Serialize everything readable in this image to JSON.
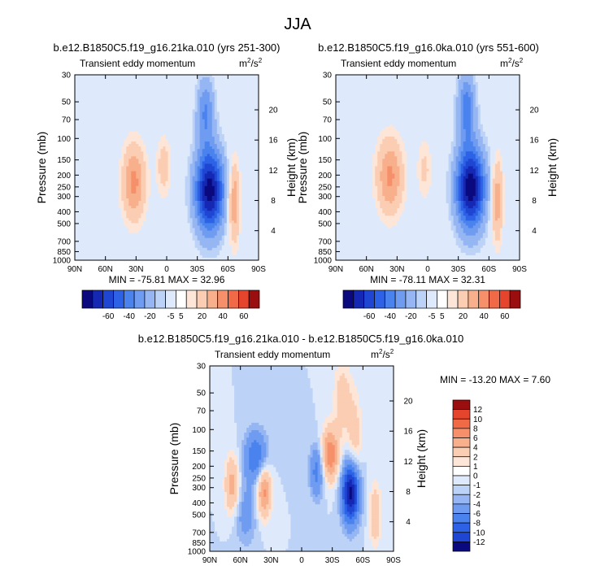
{
  "title": "JJA",
  "colors": {
    "ramp": [
      "#0a0a7e",
      "#1428b4",
      "#1e46d2",
      "#2d62e6",
      "#4a82ee",
      "#6f9cf0",
      "#95b6f2",
      "#bcd2f6",
      "#deeafb",
      "#ffffff",
      "#fde6d8",
      "#fbcdb2",
      "#f8b08c",
      "#f5906a",
      "#f06a48",
      "#e4452c",
      "#c9221a",
      "#9b0e10",
      "#720407"
    ],
    "bg_ring": "#fde6d8",
    "bg_blue": "#deeafb"
  },
  "chart_data": [
    {
      "type": "heatmap",
      "title": "b.e12.B1850C5.f19_g16.21ka.010 (yrs 251-300)",
      "left_label": "Transient eddy momentum",
      "units": "m²/s²",
      "units_base": "m",
      "units_sup1": "2",
      "units_mid": "/s",
      "units_sup2": "2",
      "xlabel": "",
      "ylabel": "Pressure (mb)",
      "ylabel_right": "Height (km)",
      "x_ticks": [
        "90N",
        "60N",
        "30N",
        "0",
        "30S",
        "60S",
        "90S"
      ],
      "x_values": [
        90,
        60,
        30,
        0,
        -30,
        -60,
        -90
      ],
      "y_ticks": [
        "30",
        "50",
        "70",
        "100",
        "150",
        "200",
        "250",
        "300",
        "400",
        "500",
        "700",
        "850",
        "1000"
      ],
      "y_values": [
        30,
        50,
        70,
        100,
        150,
        200,
        250,
        300,
        400,
        500,
        700,
        850,
        1000
      ],
      "right_ticks": [
        "4",
        "8",
        "12",
        "16",
        "20"
      ],
      "right_values": [
        4,
        8,
        12,
        16,
        20
      ],
      "ylim": [
        1000,
        30
      ],
      "xlim": [
        90,
        -90
      ],
      "y_scale": "log",
      "min_label": "MIN = -75.81  MAX = 32.96",
      "min": -75.81,
      "max": 32.96,
      "levels": [
        "-60",
        "-40",
        "-20",
        "-5",
        "5",
        "20",
        "40",
        "60"
      ],
      "features": [
        {
          "lat": -42,
          "p": 270,
          "value": -75.81,
          "sigma_lat": 10,
          "sigma_p": 0.55
        },
        {
          "lat": -38,
          "p": 60,
          "value": -30,
          "sigma_lat": 6,
          "sigma_p": 0.45
        },
        {
          "lat": 32,
          "p": 230,
          "value": 32.96,
          "sigma_lat": 8,
          "sigma_p": 0.5
        },
        {
          "lat": -66,
          "p": 330,
          "value": 30,
          "sigma_lat": 4,
          "sigma_p": 0.55
        },
        {
          "lat": 3,
          "p": 170,
          "value": 15,
          "sigma_lat": 5,
          "sigma_p": 0.4
        }
      ]
    },
    {
      "type": "heatmap",
      "title": "b.e12.B1850C5.f19_g16.0ka.010 (yrs 551-600)",
      "left_label": "Transient eddy momentum",
      "units": "m²/s²",
      "units_base": "m",
      "units_sup1": "2",
      "units_mid": "/s",
      "units_sup2": "2",
      "xlabel": "",
      "ylabel": "Pressure (mb)",
      "ylabel_right": "Height (km)",
      "x_ticks": [
        "90N",
        "60N",
        "30N",
        "0",
        "30S",
        "60S",
        "90S"
      ],
      "x_values": [
        90,
        60,
        30,
        0,
        -30,
        -60,
        -90
      ],
      "y_ticks": [
        "30",
        "50",
        "70",
        "100",
        "150",
        "200",
        "250",
        "300",
        "400",
        "500",
        "700",
        "850",
        "1000"
      ],
      "y_values": [
        30,
        50,
        70,
        100,
        150,
        200,
        250,
        300,
        400,
        500,
        700,
        850,
        1000
      ],
      "right_ticks": [
        "4",
        "8",
        "12",
        "16",
        "20"
      ],
      "right_values": [
        4,
        8,
        12,
        16,
        20
      ],
      "ylim": [
        1000,
        30
      ],
      "xlim": [
        90,
        -90
      ],
      "y_scale": "log",
      "min_label": "MIN = -78.11  MAX = 32.31",
      "min": -78.11,
      "max": 32.31,
      "levels": [
        "-60",
        "-40",
        "-20",
        "-5",
        "5",
        "20",
        "40",
        "60"
      ],
      "features": [
        {
          "lat": -42,
          "p": 255,
          "value": -78.11,
          "sigma_lat": 10,
          "sigma_p": 0.55
        },
        {
          "lat": -38,
          "p": 55,
          "value": -35,
          "sigma_lat": 6,
          "sigma_p": 0.45
        },
        {
          "lat": 37,
          "p": 205,
          "value": 32.31,
          "sigma_lat": 9,
          "sigma_p": 0.5
        },
        {
          "lat": -68,
          "p": 320,
          "value": 28,
          "sigma_lat": 4,
          "sigma_p": 0.55
        },
        {
          "lat": 3,
          "p": 180,
          "value": 12,
          "sigma_lat": 5,
          "sigma_p": 0.4
        }
      ]
    },
    {
      "type": "heatmap",
      "title": "b.e12.B1850C5.f19_g16.21ka.010 - b.e12.B1850C5.f19_g16.0ka.010",
      "left_label": "Transient eddy momentum",
      "units": "m²/s²",
      "units_base": "m",
      "units_sup1": "2",
      "units_mid": "/s",
      "units_sup2": "2",
      "xlabel": "",
      "ylabel": "Pressure (mb)",
      "ylabel_right": "Height (km)",
      "x_ticks": [
        "90N",
        "60N",
        "30N",
        "0",
        "30S",
        "60S",
        "90S"
      ],
      "x_values": [
        90,
        60,
        30,
        0,
        -30,
        -60,
        -90
      ],
      "y_ticks": [
        "30",
        "50",
        "70",
        "100",
        "150",
        "200",
        "250",
        "300",
        "400",
        "500",
        "700",
        "850",
        "1000"
      ],
      "y_values": [
        30,
        50,
        70,
        100,
        150,
        200,
        250,
        300,
        400,
        500,
        700,
        850,
        1000
      ],
      "right_ticks": [
        "4",
        "8",
        "12",
        "16",
        "20"
      ],
      "right_values": [
        4,
        8,
        12,
        16,
        20
      ],
      "ylim": [
        1000,
        30
      ],
      "xlim": [
        90,
        -90
      ],
      "y_scale": "log",
      "min_label": "MIN = -13.20  MAX =  7.60",
      "min": -13.2,
      "max": 7.6,
      "levels": [
        "12",
        "10",
        "8",
        "6",
        "4",
        "2",
        "1",
        "0",
        "-1",
        "-2",
        "-4",
        "-6",
        "-8",
        "-10",
        "-12"
      ],
      "features": [
        {
          "lat": -48,
          "p": 330,
          "value": -13.2,
          "sigma_lat": 6,
          "sigma_p": 0.4
        },
        {
          "lat": -28,
          "p": 160,
          "value": 7.6,
          "sigma_lat": 6,
          "sigma_p": 0.35
        },
        {
          "lat": 37,
          "p": 320,
          "value": 7,
          "sigma_lat": 5,
          "sigma_p": 0.35
        },
        {
          "lat": 68,
          "p": 290,
          "value": 5,
          "sigma_lat": 5,
          "sigma_p": 0.4
        },
        {
          "lat": 45,
          "p": 170,
          "value": -6,
          "sigma_lat": 8,
          "sigma_p": 0.35
        },
        {
          "lat": -15,
          "p": 220,
          "value": -5,
          "sigma_lat": 5,
          "sigma_p": 0.35
        },
        {
          "lat": -52,
          "p": 120,
          "value": 3,
          "sigma_lat": 5,
          "sigma_p": 0.6
        },
        {
          "lat": -72,
          "p": 500,
          "value": 4,
          "sigma_lat": 4,
          "sigma_p": 0.4
        },
        {
          "lat": -40,
          "p": 55,
          "value": 3,
          "sigma_lat": 6,
          "sigma_p": 0.5
        },
        {
          "lat": 55,
          "p": 500,
          "value": -3,
          "sigma_lat": 8,
          "sigma_p": 0.4
        }
      ]
    }
  ]
}
